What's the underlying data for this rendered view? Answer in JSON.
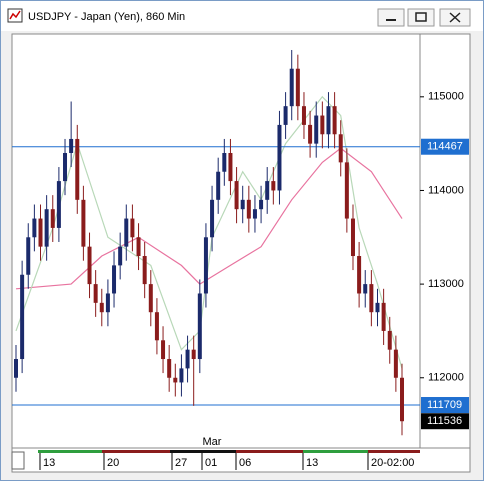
{
  "chart_data": {
    "type": "candlestick",
    "title": "USDJPY - Japan (Yen), 860 Min",
    "up_color": "#1b2a6b",
    "down_color": "#8a1c1c",
    "open": [
      112000,
      112200,
      113100,
      113500,
      113700,
      113400,
      113800,
      113600,
      114100,
      114400,
      114550,
      113900,
      113400,
      113000,
      112800,
      112700,
      112900,
      113200,
      113400,
      113700,
      113500,
      113300,
      113000,
      112700,
      112400,
      112200,
      112000,
      111950,
      112100,
      112300,
      112200,
      112900,
      113500,
      113900,
      114200,
      114400,
      114100,
      113800,
      113900,
      113700,
      113800,
      113900,
      114100,
      114000,
      114700,
      114900,
      115300,
      114900,
      114700,
      114500,
      114800,
      114600,
      114900,
      114600,
      114300,
      113700,
      113300,
      112900,
      113000,
      112700,
      112800,
      112500,
      112300,
      112000
    ],
    "high": [
      112350,
      113250,
      113650,
      113850,
      113850,
      113950,
      113950,
      114250,
      114550,
      114950,
      114700,
      114050,
      113550,
      113150,
      112950,
      113050,
      113350,
      113550,
      113850,
      113850,
      113650,
      113450,
      113150,
      112850,
      112550,
      112350,
      112150,
      112250,
      112450,
      112450,
      113050,
      113650,
      114050,
      114350,
      114550,
      114550,
      114250,
      114050,
      114050,
      113950,
      114050,
      114250,
      114250,
      114850,
      115050,
      115500,
      115450,
      115050,
      114850,
      114950,
      114950,
      115050,
      115050,
      114750,
      114450,
      113850,
      113450,
      113150,
      113150,
      112950,
      112950,
      112650,
      112450,
      112150
    ],
    "low": [
      111850,
      112050,
      112950,
      113350,
      113250,
      113250,
      113450,
      113450,
      113950,
      114250,
      113750,
      113250,
      112850,
      112650,
      112550,
      112550,
      112750,
      113050,
      113250,
      113350,
      113150,
      112850,
      112550,
      112250,
      112050,
      111850,
      111800,
      111800,
      111950,
      111700,
      112050,
      112750,
      113350,
      113750,
      114050,
      113950,
      113650,
      113650,
      113550,
      113550,
      113650,
      113750,
      113850,
      113850,
      114550,
      114750,
      114750,
      114550,
      114350,
      114350,
      114450,
      114450,
      114450,
      114150,
      113550,
      113150,
      112750,
      112750,
      112550,
      112550,
      112350,
      112150,
      111850,
      111386
    ],
    "close": [
      112200,
      113100,
      113500,
      113700,
      113400,
      113800,
      113600,
      114100,
      114400,
      114550,
      113900,
      113400,
      113000,
      112800,
      112700,
      112900,
      113200,
      113400,
      113700,
      113500,
      113300,
      113000,
      112700,
      112400,
      112200,
      112000,
      111950,
      112100,
      112300,
      112200,
      112900,
      113500,
      113900,
      114200,
      114400,
      114100,
      113800,
      113900,
      113700,
      113800,
      113900,
      114100,
      114000,
      114700,
      114900,
      115300,
      114900,
      114700,
      114500,
      114800,
      114600,
      114900,
      114600,
      114300,
      113700,
      113300,
      112900,
      113000,
      112700,
      112800,
      112500,
      112300,
      112000,
      111536
    ],
    "overlays": [
      {
        "color": "#e8739f",
        "x": [
          0,
          9,
          14,
          20,
          27,
          30,
          35,
          40,
          45,
          50,
          53,
          58,
          63
        ],
        "values": [
          112950,
          113000,
          113300,
          113500,
          113200,
          113000,
          113200,
          113400,
          113900,
          114300,
          114450,
          114200,
          113700
        ]
      },
      {
        "color": "#b8d8b8",
        "x": [
          0,
          6,
          10,
          15,
          22,
          27,
          30,
          32,
          37,
          40,
          44,
          50,
          53,
          56,
          59,
          63
        ],
        "values": [
          112500,
          113600,
          114500,
          113500,
          113200,
          112300,
          112500,
          113500,
          114200,
          113900,
          114500,
          115000,
          114800,
          113600,
          113000,
          112100
        ]
      }
    ],
    "levels": [
      {
        "value": 114467,
        "color": "#1f6fd0"
      },
      {
        "value": 111709,
        "color": "#1f6fd0"
      }
    ],
    "ylim": [
      111250,
      115660
    ],
    "yticks": [
      112000,
      113000,
      114000,
      115000
    ],
    "xlabels": [
      "13",
      "20",
      "27",
      "01",
      "06",
      "13",
      "20-02:00"
    ],
    "month_label": "Mar"
  }
}
